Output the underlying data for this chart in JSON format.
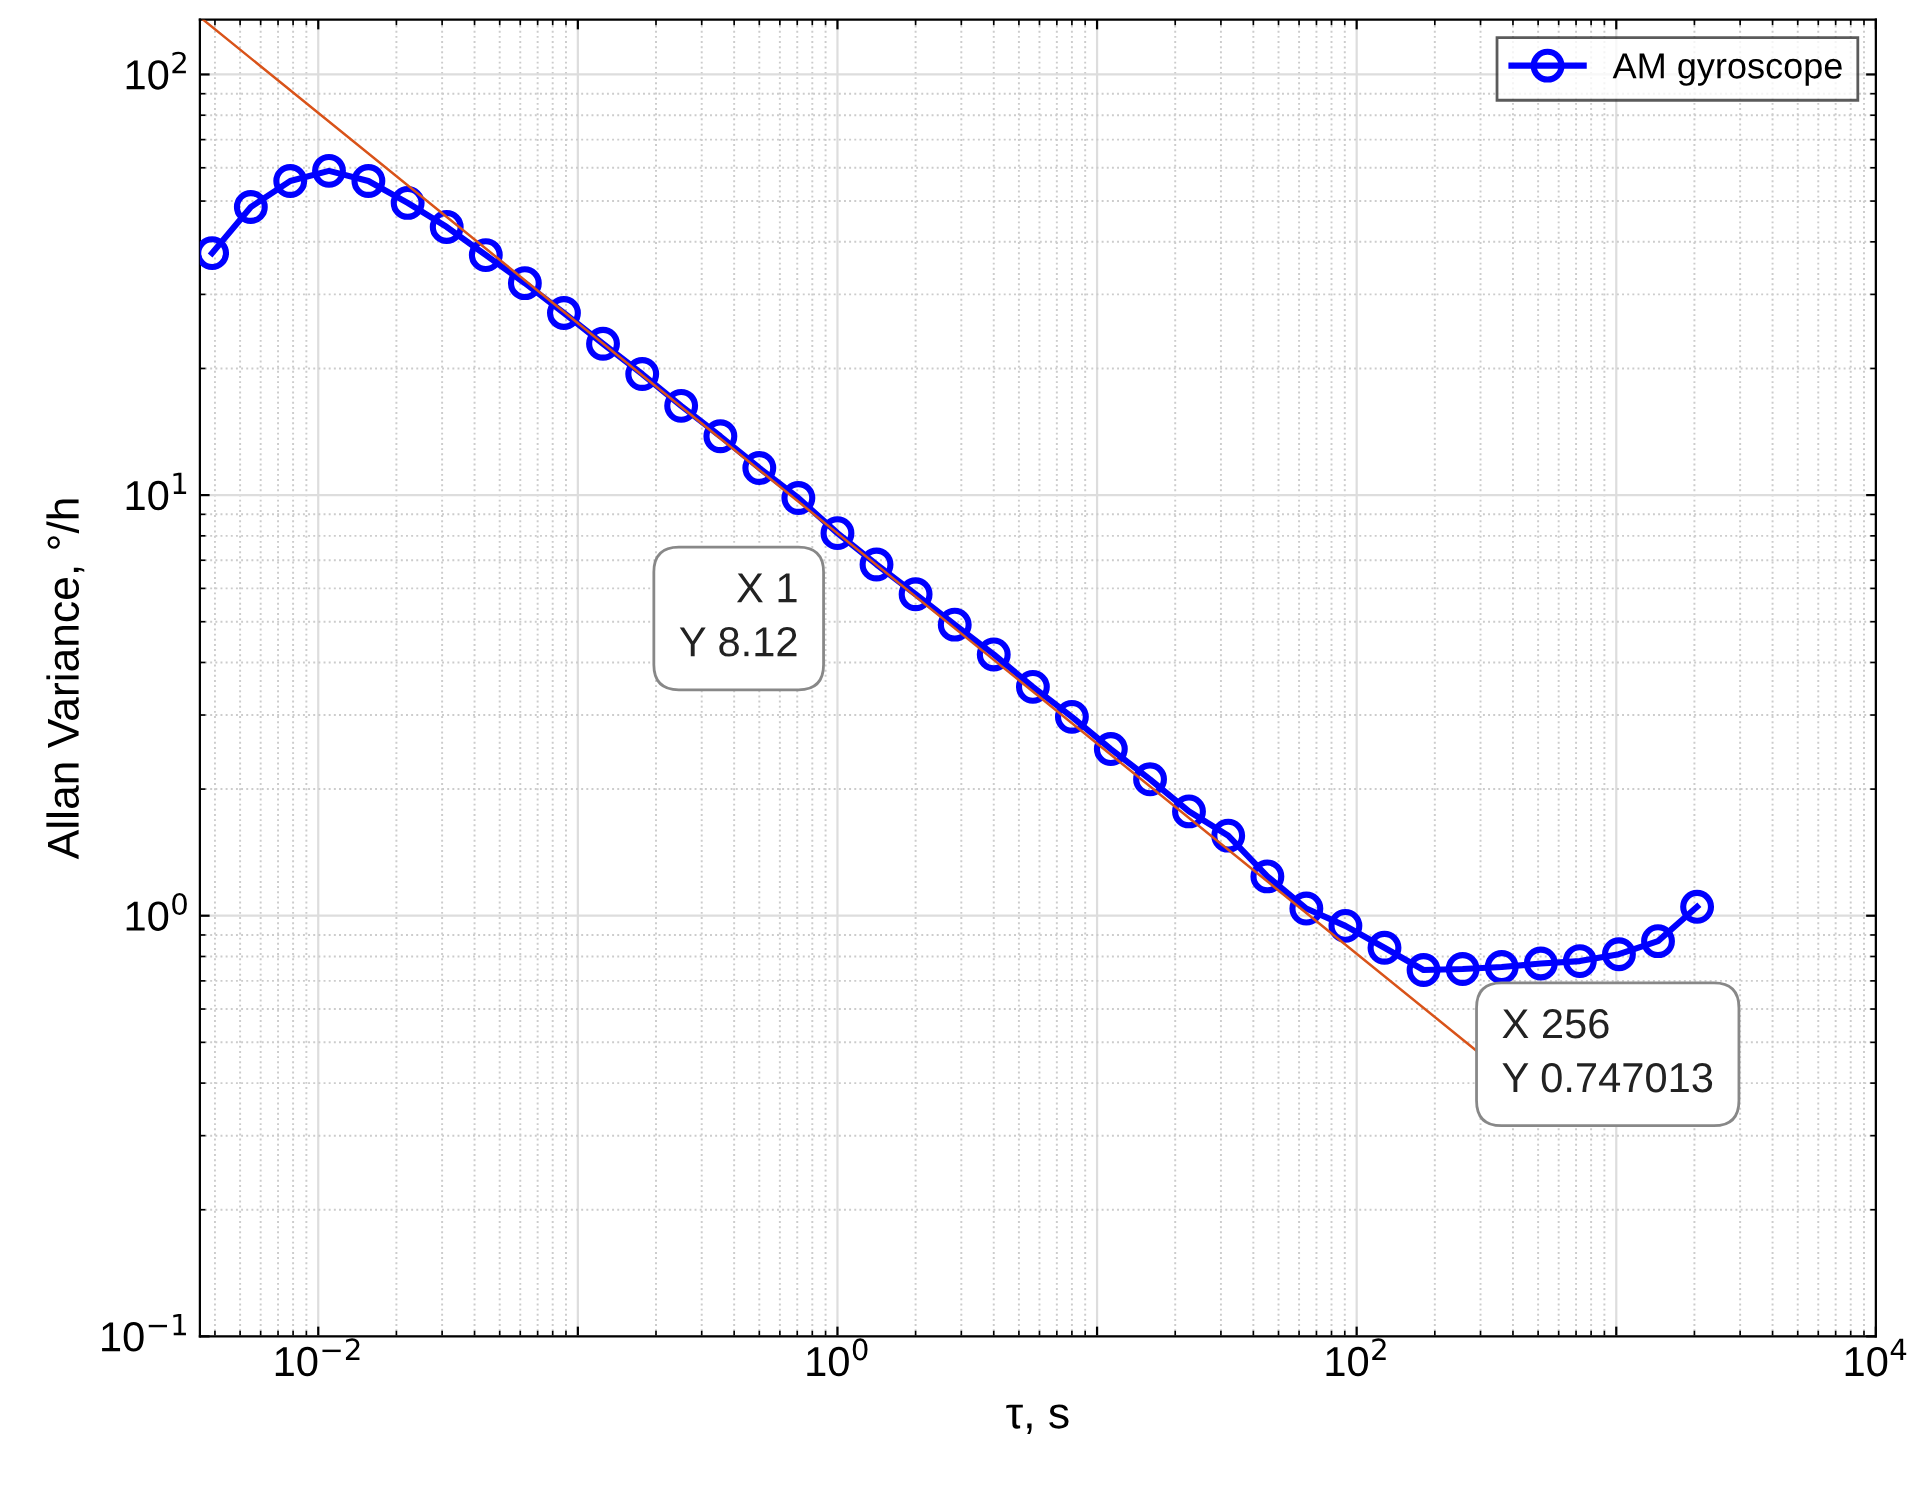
{
  "chart_data": {
    "type": "line",
    "xlabel": "τ, s",
    "ylabel": "Allan Variance, °/h",
    "log": "xy",
    "grid": true,
    "legend": "top right",
    "marker": "circle",
    "line_style": "solid",
    "xlim": [
      0.0035,
      10000
    ],
    "ylim": [
      0.1,
      135
    ],
    "xticks": [
      {
        "value": 0.01,
        "label": "10$^{−2}$"
      },
      {
        "value": 0.1,
        "label": null
      },
      {
        "value": 1,
        "label": "10$^{0}$"
      },
      {
        "value": 10,
        "label": null
      },
      {
        "value": 100,
        "label": "10$^{2}$"
      },
      {
        "value": 1000,
        "label": null
      },
      {
        "value": 10000,
        "label": "10$^{4}$"
      }
    ],
    "yticks": [
      {
        "value": 0.1,
        "label": "10$^{−1}$"
      },
      {
        "value": 1,
        "label": "10$^{0}$"
      },
      {
        "value": 10,
        "label": "10$^{1}$"
      },
      {
        "value": 100,
        "label": "10$^{2}$"
      }
    ],
    "series": [
      {
        "name": "AM gyroscope",
        "color": "#0000ff",
        "x": [
          0.0039,
          0.0055,
          0.0078,
          0.011,
          0.0156,
          0.0221,
          0.03125,
          0.0442,
          0.0625,
          0.0884,
          0.125,
          0.177,
          0.25,
          0.354,
          0.5,
          0.707,
          1,
          1.414,
          2,
          2.83,
          4,
          5.66,
          8,
          11.3,
          16,
          22.6,
          32,
          45.3,
          64,
          90.5,
          128,
          181,
          256,
          362,
          512,
          724,
          1024,
          1448,
          2048
        ],
        "values": [
          37.6,
          48.4,
          55.8,
          59,
          55.8,
          49.5,
          43.4,
          37.2,
          31.9,
          27.1,
          22.9,
          19.4,
          16.3,
          13.8,
          11.6,
          9.84,
          8.12,
          6.84,
          5.81,
          4.92,
          4.18,
          3.5,
          2.97,
          2.49,
          2.11,
          1.77,
          1.55,
          1.24,
          1.04,
          0.946,
          0.839,
          0.743,
          0.747,
          0.755,
          0.77,
          0.78,
          0.81,
          0.87,
          1.05
        ]
      },
      {
        "type": "line",
        "color": "#d95319",
        "marker": "none",
        "x": [
          0.0036,
          290
        ],
        "values": [
          135,
          0.477
        ]
      }
    ],
    "annotations": [
      {
        "text": "X 1\nY 8.12",
        "x": 1,
        "y": 8.12
      },
      {
        "text": "X 256\nY 0.747013",
        "x": 256,
        "y": 0.747013
      }
    ]
  }
}
